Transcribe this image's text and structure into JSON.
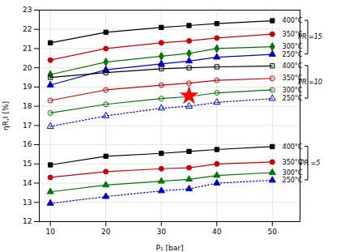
{
  "chart_data": {
    "type": "line",
    "xlabel": "P₁ [bar]",
    "ylabel": "ηR,I [%]",
    "x": [
      10,
      20,
      30,
      35,
      40,
      50
    ],
    "xlim": [
      8,
      55
    ],
    "ylim": [
      12,
      23
    ],
    "xticks": [
      10,
      20,
      30,
      40,
      50
    ],
    "yticks": [
      12,
      13,
      14,
      15,
      16,
      17,
      18,
      19,
      20,
      21,
      22,
      23
    ],
    "grid": true,
    "series": [
      {
        "color": "#000000",
        "marker": "square",
        "line_style": "solid",
        "values": [
          21.3,
          21.85,
          22.1,
          22.2,
          22.3,
          22.45
        ]
      },
      {
        "color": "#cc0000",
        "marker": "circle",
        "line_style": "solid",
        "values": [
          20.4,
          21.0,
          21.3,
          21.4,
          21.55,
          21.75
        ]
      },
      {
        "color": "#007700",
        "marker": "diamond",
        "line_style": "solid",
        "values": [
          19.65,
          20.3,
          20.6,
          20.75,
          21.0,
          21.1
        ]
      },
      {
        "color": "#0000cc",
        "marker": "triangle",
        "line_style": "solid",
        "values": [
          19.1,
          19.9,
          20.2,
          20.35,
          20.55,
          20.7
        ]
      },
      {
        "color": "#000000",
        "marker": "open-square",
        "line_style": "solid",
        "values": [
          19.5,
          19.75,
          19.95,
          20.0,
          20.05,
          20.1
        ]
      },
      {
        "color": "#cc0000",
        "marker": "open-circle",
        "line_style": "solid",
        "values": [
          18.3,
          18.85,
          19.1,
          19.2,
          19.35,
          19.45
        ]
      },
      {
        "color": "#007700",
        "marker": "open-circle",
        "line_style": "solid",
        "values": [
          17.65,
          18.1,
          18.4,
          18.5,
          18.7,
          18.85
        ]
      },
      {
        "color": "#0000cc",
        "marker": "open-triangle",
        "line_style": "dotted",
        "values": [
          16.95,
          17.5,
          17.9,
          18.0,
          18.2,
          18.4
        ]
      },
      {
        "color": "#000000",
        "marker": "square",
        "line_style": "solid",
        "values": [
          14.95,
          15.4,
          15.55,
          15.65,
          15.75,
          15.9
        ]
      },
      {
        "color": "#cc0000",
        "marker": "circle",
        "line_style": "solid",
        "values": [
          14.3,
          14.6,
          14.75,
          14.8,
          15.0,
          15.1
        ]
      },
      {
        "color": "#007700",
        "marker": "triangle",
        "line_style": "solid",
        "values": [
          13.55,
          13.9,
          14.1,
          14.2,
          14.4,
          14.55
        ]
      },
      {
        "color": "#0000cc",
        "marker": "triangle",
        "line_style": "dotted",
        "values": [
          12.95,
          13.3,
          13.6,
          13.7,
          14.0,
          14.15
        ]
      }
    ],
    "points": [
      {
        "x": 35,
        "y": 18.55,
        "color": "red",
        "marker": "star"
      }
    ],
    "annotations": [
      {
        "text": "400°C",
        "x": 51.8,
        "y": 22.45
      },
      {
        "text": "350°C",
        "x": 51.8,
        "y": 21.75
      },
      {
        "text": "300°C",
        "x": 51.8,
        "y": 21.1
      },
      {
        "text": "250°C",
        "x": 51.8,
        "y": 20.7
      },
      {
        "text": "400°C",
        "x": 51.8,
        "y": 20.1
      },
      {
        "text": "350°C",
        "x": 51.8,
        "y": 19.45
      },
      {
        "text": "300°C",
        "x": 51.8,
        "y": 18.85
      },
      {
        "text": "250°C",
        "x": 51.8,
        "y": 18.4
      },
      {
        "text": "400°C",
        "x": 51.8,
        "y": 15.9
      },
      {
        "text": "350°C",
        "x": 51.8,
        "y": 15.1
      },
      {
        "text": "300°C",
        "x": 51.8,
        "y": 14.55
      },
      {
        "text": "250°C",
        "x": 51.8,
        "y": 14.15
      }
    ],
    "brackets": [
      {
        "label": "PR =15",
        "range": [
          20.7,
          22.45
        ]
      },
      {
        "label": "PR =10",
        "range": [
          18.4,
          20.1
        ]
      },
      {
        "label": "PR =5",
        "range": [
          14.15,
          15.9
        ]
      }
    ]
  }
}
